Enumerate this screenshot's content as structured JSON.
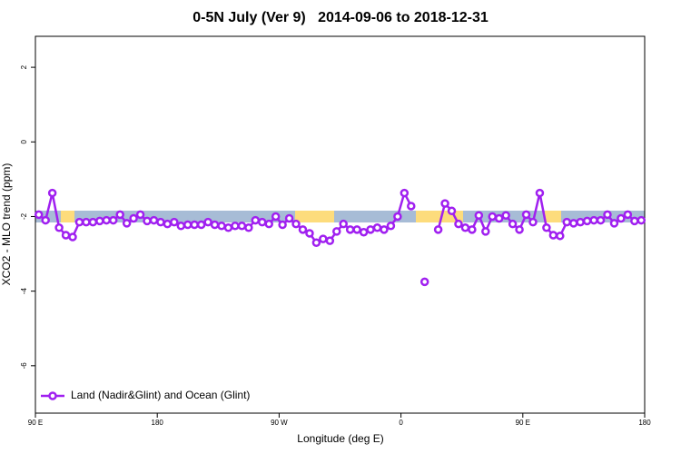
{
  "chart_data": {
    "type": "line",
    "title": "0-5N July (Ver 9)   2014-09-06 to 2018-12-31",
    "x_label": "Longitude (deg E)",
    "y_label": "XCO2 - MLO trend (ppm)",
    "xlim": [
      90,
      540
    ],
    "xticks": [
      {
        "value": 90,
        "label": "90 E"
      },
      180,
      {
        "value": 270,
        "label": "90 W"
      },
      {
        "value": 360,
        "label": "0"
      },
      {
        "value": 450,
        "label": "90 E"
      },
      {
        "value": 540,
        "label": "180"
      }
    ],
    "ylim": [
      -7.27,
      2.83
    ],
    "yticks": [
      -6,
      -4,
      -2,
      0,
      2
    ],
    "legend": "bottom-left",
    "x": [
      92.5,
      97.5,
      102.5,
      107.5,
      112.5,
      117.5,
      122.5,
      127.5,
      132.5,
      137.5,
      142.5,
      147.5,
      152.5,
      157.5,
      162.5,
      167.5,
      172.5,
      177.5,
      182.5,
      187.5,
      192.5,
      197.5,
      202.5,
      207.5,
      212.5,
      217.5,
      222.5,
      227.5,
      232.5,
      237.5,
      242.5,
      247.5,
      252.5,
      257.5,
      262.5,
      267.5,
      272.5,
      277.5,
      282.5,
      287.5,
      292.5,
      297.5,
      302.5,
      307.5,
      312.5,
      317.5,
      322.5,
      327.5,
      332.5,
      337.5,
      342.5,
      347.5,
      352.5,
      357.5,
      362.5,
      367.5,
      372.5,
      377.5,
      382.5,
      387.5,
      392.5,
      397.5,
      402.5,
      407.5,
      412.5,
      417.5,
      422.5,
      427.5,
      432.5,
      437.5,
      442.5,
      447.5,
      452.5,
      457.5,
      462.5,
      467.5,
      472.5,
      477.5,
      482.5,
      487.5,
      492.5,
      497.5,
      502.5,
      507.5,
      512.5,
      517.5,
      522.5,
      527.5,
      532.5,
      537.5
    ],
    "series": [
      {
        "name": "Land (Nadir&Glint) and Ocean (Glint)",
        "color": "#a020f0",
        "values": [
          -1.95,
          -2.1,
          -1.37,
          -2.3,
          -2.5,
          -2.55,
          -2.15,
          -2.15,
          -2.15,
          -2.12,
          -2.1,
          -2.1,
          -1.95,
          -2.18,
          -2.05,
          -1.95,
          -2.12,
          -2.1,
          -2.15,
          -2.2,
          -2.15,
          -2.25,
          -2.22,
          -2.22,
          -2.22,
          -2.15,
          -2.22,
          -2.25,
          -2.3,
          -2.25,
          -2.25,
          -2.3,
          -2.1,
          -2.15,
          -2.2,
          -2.0,
          -2.22,
          -2.05,
          -2.2,
          -2.35,
          -2.45,
          -2.7,
          -2.6,
          -2.65,
          -2.4,
          -2.2,
          -2.35,
          -2.35,
          -2.42,
          -2.35,
          -2.3,
          -2.35,
          -2.25,
          -2.0,
          -1.37,
          -1.72,
          null,
          -3.75,
          null,
          -2.35,
          -1.65,
          -1.85,
          -2.2,
          -2.3,
          -2.35,
          -1.97,
          -2.4,
          -2.0,
          -2.05,
          -1.97,
          -2.2,
          -2.35,
          -1.95,
          -2.15,
          -1.37,
          -2.3,
          -2.5,
          -2.52,
          -2.15,
          -2.18,
          -2.15,
          -2.12,
          -2.1,
          -2.1,
          -1.95,
          -2.18,
          -2.05,
          -1.95,
          -2.12,
          -2.1
        ]
      }
    ]
  }
}
